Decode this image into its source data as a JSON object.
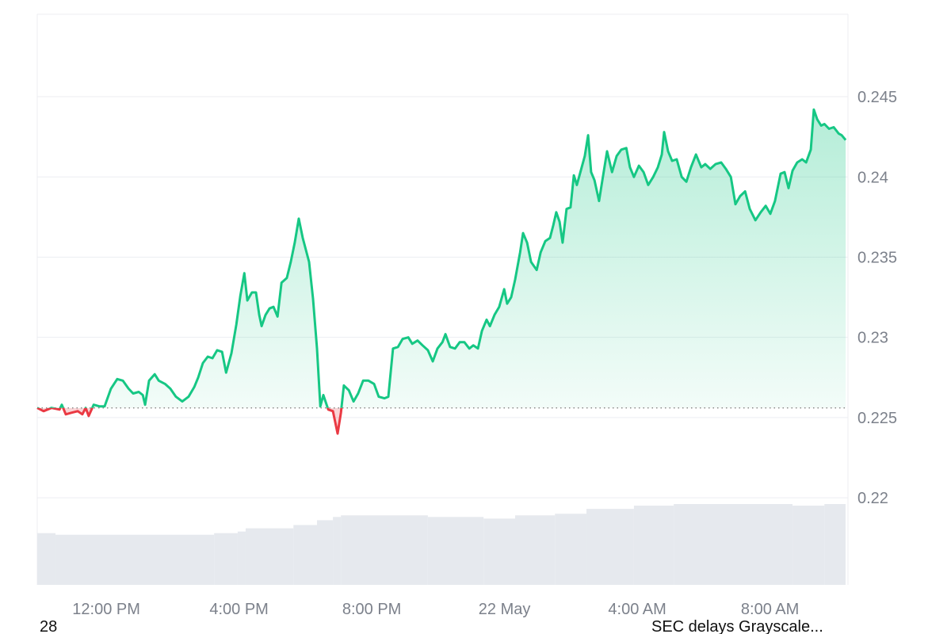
{
  "chart_data": {
    "type": "line",
    "x": [
      9.92,
      10.11,
      10.35,
      10.59,
      10.66,
      10.78,
      10.95,
      11.14,
      11.28,
      11.38,
      11.47,
      11.62,
      11.79,
      11.95,
      12.14,
      12.33,
      12.5,
      12.67,
      12.81,
      12.98,
      13.1,
      13.17,
      13.29,
      13.46,
      13.58,
      13.77,
      13.93,
      14.1,
      14.29,
      14.48,
      14.65,
      14.77,
      14.91,
      15.06,
      15.2,
      15.34,
      15.49,
      15.61,
      15.77,
      15.92,
      16.04,
      16.16,
      16.25,
      16.39,
      16.51,
      16.61,
      16.68,
      16.8,
      16.92,
      17.04,
      17.16,
      17.28,
      17.44,
      17.56,
      17.68,
      17.8,
      17.92,
      18.11,
      18.23,
      18.35,
      18.45,
      18.54,
      18.69,
      18.83,
      18.97,
      19.07,
      19.16,
      19.31,
      19.45,
      19.59,
      19.74,
      19.9,
      20.07,
      20.21,
      20.38,
      20.5,
      20.64,
      20.79,
      20.93,
      21.1,
      21.22,
      21.38,
      21.53,
      21.69,
      21.84,
      21.98,
      22.13,
      22.22,
      22.36,
      22.51,
      22.65,
      22.79,
      22.94,
      23.06,
      23.2,
      23.32,
      23.46,
      23.56,
      23.7,
      23.84,
      23.99,
      24.08,
      24.2,
      24.32,
      24.47,
      24.56,
      24.68,
      24.8,
      24.97,
      25.09,
      25.23,
      25.37,
      25.47,
      25.56,
      25.66,
      25.75,
      25.87,
      25.99,
      26.09,
      26.18,
      26.3,
      26.42,
      26.52,
      26.61,
      26.71,
      26.85,
      26.95,
      27.09,
      27.24,
      27.38,
      27.52,
      27.67,
      27.78,
      27.9,
      28.05,
      28.19,
      28.33,
      28.48,
      28.62,
      28.74,
      28.81,
      28.93,
      29.05,
      29.19,
      29.34,
      29.48,
      29.62,
      29.77,
      29.93,
      30.05,
      30.2,
      30.36,
      30.53,
      30.67,
      30.82,
      30.96,
      31.1,
      31.25,
      31.39,
      31.56,
      31.72,
      31.87,
      32.01,
      32.15,
      32.32,
      32.44,
      32.56,
      32.68,
      32.82,
      32.97,
      33.09,
      33.23,
      33.32,
      33.42,
      33.54,
      33.64,
      33.78,
      33.92,
      34.07,
      34.16,
      34.28
    ],
    "values": [
      0.2256,
      0.2254,
      0.2256,
      0.2255,
      0.2258,
      0.2252,
      0.2253,
      0.2254,
      0.2252,
      0.2256,
      0.2251,
      0.2258,
      0.2257,
      0.2257,
      0.2268,
      0.2274,
      0.2273,
      0.2268,
      0.2265,
      0.2266,
      0.2264,
      0.2258,
      0.2273,
      0.2277,
      0.2273,
      0.2271,
      0.2268,
      0.2263,
      0.226,
      0.2263,
      0.2269,
      0.2275,
      0.2284,
      0.2288,
      0.2287,
      0.2292,
      0.2291,
      0.2278,
      0.229,
      0.2308,
      0.2326,
      0.234,
      0.2323,
      0.2328,
      0.2328,
      0.2314,
      0.2307,
      0.2314,
      0.2318,
      0.2319,
      0.2313,
      0.2334,
      0.2337,
      0.2347,
      0.2359,
      0.2374,
      0.2362,
      0.2347,
      0.2324,
      0.2293,
      0.2257,
      0.2264,
      0.2255,
      0.2254,
      0.224,
      0.2253,
      0.227,
      0.2267,
      0.226,
      0.2265,
      0.2273,
      0.2273,
      0.2271,
      0.2263,
      0.2262,
      0.2263,
      0.2293,
      0.2294,
      0.2299,
      0.23,
      0.2296,
      0.2298,
      0.2295,
      0.2292,
      0.2285,
      0.2293,
      0.2297,
      0.2302,
      0.2294,
      0.2293,
      0.2297,
      0.2297,
      0.2293,
      0.2295,
      0.2293,
      0.2304,
      0.2311,
      0.2307,
      0.2314,
      0.2319,
      0.233,
      0.2321,
      0.2325,
      0.2336,
      0.2353,
      0.2365,
      0.2359,
      0.2347,
      0.2342,
      0.2353,
      0.236,
      0.2362,
      0.237,
      0.2378,
      0.2372,
      0.2359,
      0.238,
      0.2381,
      0.2401,
      0.2395,
      0.2404,
      0.2413,
      0.2426,
      0.2403,
      0.2398,
      0.2385,
      0.2398,
      0.2416,
      0.2403,
      0.2413,
      0.2417,
      0.2418,
      0.2406,
      0.24,
      0.2407,
      0.2403,
      0.2395,
      0.24,
      0.2406,
      0.2414,
      0.2428,
      0.2416,
      0.241,
      0.2411,
      0.24,
      0.2397,
      0.2406,
      0.2414,
      0.2406,
      0.2408,
      0.2405,
      0.2408,
      0.2409,
      0.2405,
      0.24,
      0.2383,
      0.2388,
      0.2391,
      0.238,
      0.2373,
      0.2378,
      0.2382,
      0.2377,
      0.2385,
      0.2402,
      0.2403,
      0.2393,
      0.2404,
      0.2409,
      0.2411,
      0.2409,
      0.2417,
      0.2442,
      0.2436,
      0.2432,
      0.2433,
      0.243,
      0.2431,
      0.2427,
      0.2426,
      0.2423
    ],
    "baseline": 0.2256,
    "up_color": "#16c784",
    "down_color": "#ea3943",
    "volume": {
      "x": [
        9.92,
        10.47,
        15.25,
        15.96,
        16.2,
        17.64,
        18.35,
        18.83,
        19.07,
        21.69,
        23.37,
        24.32,
        25.52,
        26.47,
        27.9,
        29.1,
        32.68,
        33.64
      ],
      "values": [
        64,
        62,
        64,
        66,
        70,
        74,
        80,
        84,
        86,
        84,
        82,
        86,
        88,
        94,
        98,
        100,
        98,
        100
      ],
      "color": "#e6e9ee"
    },
    "xlim": [
      9.92,
      34.35
    ],
    "ylim": [
      0.21457,
      0.25014
    ],
    "xticks": [
      {
        "value": 12,
        "label": "12:00 PM"
      },
      {
        "value": 16,
        "label": "4:00 PM"
      },
      {
        "value": 20,
        "label": "8:00 PM"
      },
      {
        "value": 24,
        "label": "22 May"
      },
      {
        "value": 28,
        "label": "4:00 AM"
      },
      {
        "value": 32,
        "label": "8:00 AM"
      }
    ],
    "yticks": [
      0.22,
      0.225,
      0.23,
      0.235,
      0.24,
      0.245
    ],
    "grid": true
  },
  "footer": {
    "left": "28",
    "right": "SEC delays Grayscale..."
  }
}
